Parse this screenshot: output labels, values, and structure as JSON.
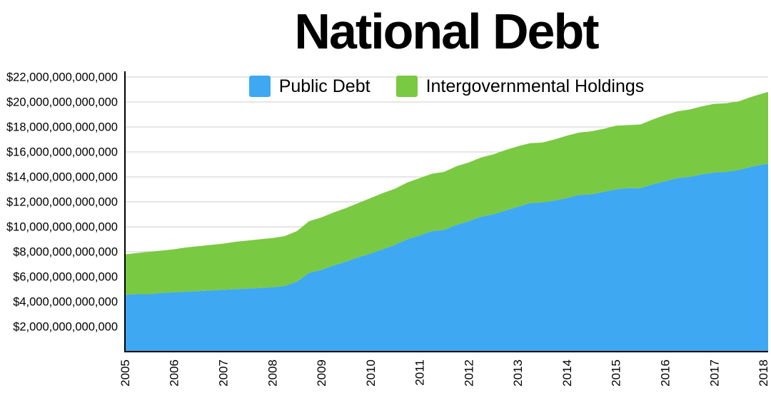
{
  "title": "National Debt",
  "legend": [
    {
      "label": "Public Debt",
      "color": "#3fa8f2"
    },
    {
      "label": "Intergovernmental Holdings",
      "color": "#7ac943"
    }
  ],
  "chart_data": {
    "type": "area",
    "stacked": true,
    "title": "National Debt",
    "units": "USD trillions",
    "grid": true,
    "legend_position": "top-center",
    "xlim": [
      2005,
      2018.1
    ],
    "ylim": [
      0,
      22
    ],
    "colors": {
      "grid": "#cccccc",
      "axis": "#000000",
      "background": "#ffffff"
    },
    "x": [
      2005,
      2005.25,
      2005.5,
      2005.75,
      2006,
      2006.25,
      2006.5,
      2006.75,
      2007,
      2007.25,
      2007.5,
      2007.75,
      2008,
      2008.25,
      2008.5,
      2008.75,
      2009,
      2009.25,
      2009.5,
      2009.75,
      2010,
      2010.25,
      2010.5,
      2010.75,
      2011,
      2011.25,
      2011.5,
      2011.75,
      2012,
      2012.25,
      2012.5,
      2012.75,
      2013,
      2013.25,
      2013.5,
      2013.75,
      2014,
      2014.25,
      2014.5,
      2014.75,
      2015,
      2015.25,
      2015.5,
      2015.75,
      2016,
      2016.25,
      2016.5,
      2016.75,
      2017,
      2017.25,
      2017.5,
      2017.75,
      2018,
      2018.1
    ],
    "series": [
      {
        "name": "Public Debt",
        "color": "#3fa8f2",
        "values": [
          4.55,
          4.6,
          4.6,
          4.7,
          4.75,
          4.8,
          4.85,
          4.9,
          4.95,
          5.0,
          5.05,
          5.1,
          5.15,
          5.25,
          5.6,
          6.3,
          6.55,
          6.9,
          7.2,
          7.55,
          7.85,
          8.2,
          8.55,
          9.0,
          9.3,
          9.65,
          9.75,
          10.15,
          10.45,
          10.8,
          11.0,
          11.3,
          11.6,
          11.9,
          11.95,
          12.1,
          12.3,
          12.55,
          12.6,
          12.8,
          13.0,
          13.1,
          13.1,
          13.4,
          13.65,
          13.9,
          14.0,
          14.2,
          14.35,
          14.4,
          14.55,
          14.8,
          15.0,
          15.05
        ]
      },
      {
        "name": "Intergovernmental Holdings",
        "color": "#7ac943",
        "values": [
          3.25,
          3.3,
          3.4,
          3.4,
          3.45,
          3.55,
          3.6,
          3.65,
          3.7,
          3.8,
          3.85,
          3.9,
          3.95,
          4.0,
          4.05,
          4.15,
          4.2,
          4.25,
          4.3,
          4.35,
          4.45,
          4.5,
          4.5,
          4.55,
          4.6,
          4.6,
          4.65,
          4.7,
          4.7,
          4.75,
          4.8,
          4.85,
          4.85,
          4.8,
          4.8,
          4.9,
          5.0,
          5.0,
          5.05,
          5.05,
          5.1,
          5.05,
          5.1,
          5.2,
          5.3,
          5.35,
          5.4,
          5.45,
          5.5,
          5.5,
          5.5,
          5.6,
          5.7,
          5.75
        ]
      }
    ],
    "y_tick_values": [
      2,
      4,
      6,
      8,
      10,
      12,
      14,
      16,
      18,
      20,
      22
    ],
    "y_tick_labels": [
      "$2,000,000,000,000",
      "$4,000,000,000,000",
      "$6,000,000,000,000",
      "$8,000,000,000,000",
      "$10,000,000,000,000",
      "$12,000,000,000,000",
      "$14,000,000,000,000",
      "$16,000,000,000,000",
      "$18,000,000,000,000",
      "$20,000,000,000,000",
      "$22,000,000,000,000"
    ],
    "x_tick_values": [
      2005,
      2006,
      2007,
      2008,
      2009,
      2010,
      2011,
      2012,
      2013,
      2014,
      2015,
      2016,
      2017,
      2018
    ],
    "x_tick_labels": [
      "2005",
      "2006",
      "2007",
      "2008",
      "2009",
      "2010",
      "2011",
      "2012",
      "2013",
      "2014",
      "2015",
      "2016",
      "2017",
      "2018"
    ]
  }
}
